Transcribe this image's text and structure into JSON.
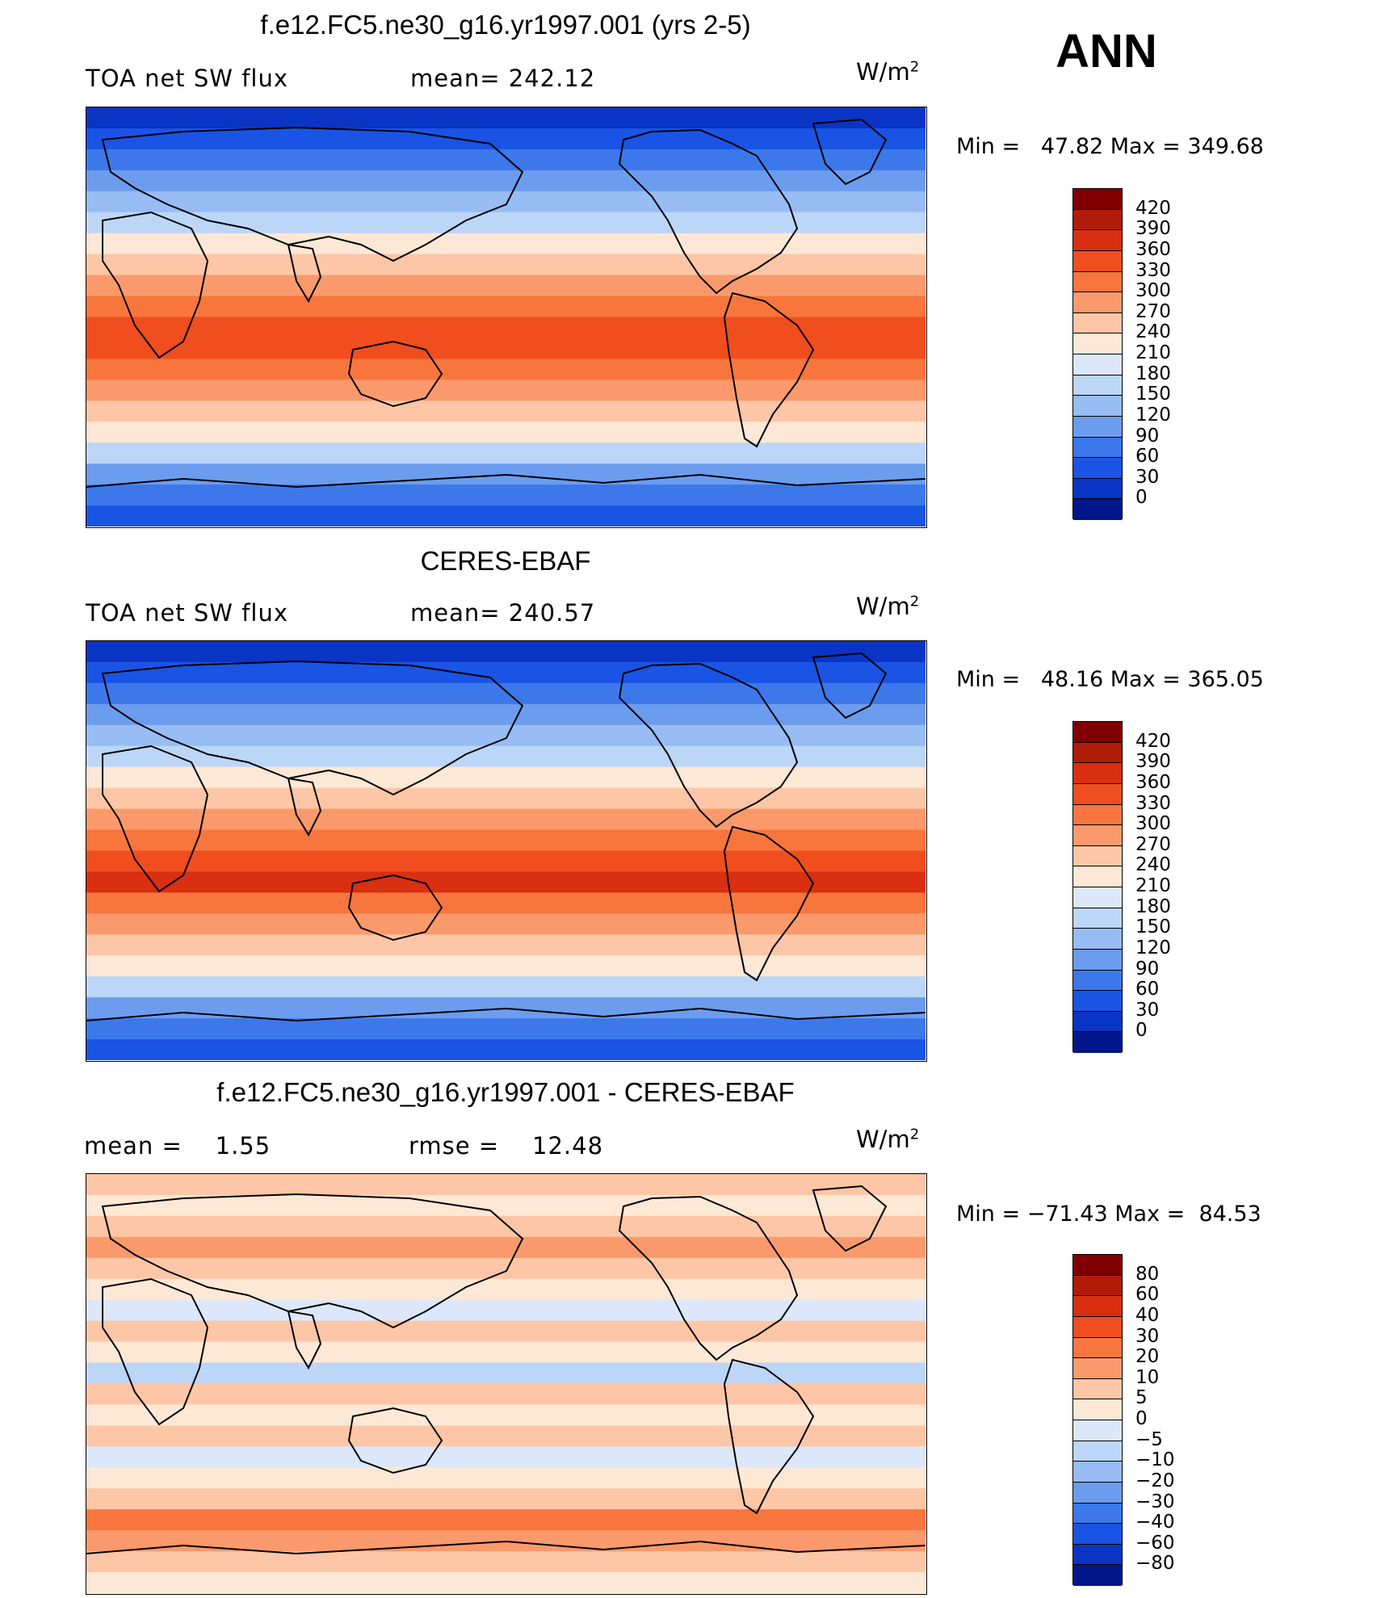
{
  "season": "ANN",
  "panels": [
    {
      "id": "model",
      "title": "f.e12.FC5.ne30_g16.yr1997.001 (yrs 2-5)",
      "left_label": "TOA net SW flux",
      "center_label": "mean= 242.12",
      "units": "W/m",
      "units_exp": "2",
      "min_label": "Min =",
      "min_value": "47.82",
      "max_label": "Max =",
      "max_value": "349.68",
      "colorbar": {
        "levels": [
          "420",
          "390",
          "360",
          "330",
          "300",
          "270",
          "240",
          "210",
          "180",
          "150",
          "120",
          "90",
          "60",
          "30",
          "0"
        ],
        "colors": [
          "#7f0000",
          "#b01c08",
          "#d83010",
          "#f04e1e",
          "#f8763e",
          "#fa9a6c",
          "#fdc6a6",
          "#fde8d6",
          "#dce8fa",
          "#bcd6f8",
          "#98bcf4",
          "#6c9cee",
          "#3c78ea",
          "#1a54e4",
          "#0a34c4",
          "#00168a"
        ]
      },
      "fill_bands": [
        "#0a34c4",
        "#1a54e4",
        "#3c78ea",
        "#6c9cee",
        "#98bcf4",
        "#bcd6f8",
        "#fde8d6",
        "#fdc6a6",
        "#fa9a6c",
        "#f8763e",
        "#f04e1e",
        "#f04e1e",
        "#f8763e",
        "#fa9a6c",
        "#fdc6a6",
        "#fde8d6",
        "#bcd6f8",
        "#6c9cee",
        "#3c78ea",
        "#1a54e4"
      ]
    },
    {
      "id": "obs",
      "title": "CERES-EBAF",
      "left_label": "TOA net SW flux",
      "center_label": "mean= 240.57",
      "units": "W/m",
      "units_exp": "2",
      "min_label": "Min =",
      "min_value": "48.16",
      "max_label": "Max =",
      "max_value": "365.05",
      "colorbar": {
        "levels": [
          "420",
          "390",
          "360",
          "330",
          "300",
          "270",
          "240",
          "210",
          "180",
          "150",
          "120",
          "90",
          "60",
          "30",
          "0"
        ],
        "colors": [
          "#7f0000",
          "#b01c08",
          "#d83010",
          "#f04e1e",
          "#f8763e",
          "#fa9a6c",
          "#fdc6a6",
          "#fde8d6",
          "#dce8fa",
          "#bcd6f8",
          "#98bcf4",
          "#6c9cee",
          "#3c78ea",
          "#1a54e4",
          "#0a34c4",
          "#00168a"
        ]
      },
      "fill_bands": [
        "#0a34c4",
        "#1a54e4",
        "#3c78ea",
        "#6c9cee",
        "#98bcf4",
        "#bcd6f8",
        "#fde8d6",
        "#fdc6a6",
        "#fa9a6c",
        "#f8763e",
        "#f04e1e",
        "#d83010",
        "#f8763e",
        "#fa9a6c",
        "#fdc6a6",
        "#fde8d6",
        "#bcd6f8",
        "#6c9cee",
        "#3c78ea",
        "#1a54e4"
      ]
    },
    {
      "id": "diff",
      "title": "f.e12.FC5.ne30_g16.yr1997.001 - CERES-EBAF",
      "left_label": "mean =    1.55",
      "center_label": "rmse =    12.48",
      "units": "W/m",
      "units_exp": "2",
      "min_label": "Min =",
      "min_value": "−71.43",
      "max_label": "Max =",
      "max_value": "84.53",
      "colorbar": {
        "levels": [
          "80",
          "60",
          "40",
          "30",
          "20",
          "10",
          "5",
          "0",
          "−5",
          "−10",
          "−20",
          "−30",
          "−40",
          "−60",
          "−80"
        ],
        "colors": [
          "#7f0000",
          "#b01c08",
          "#d83010",
          "#f04e1e",
          "#f8763e",
          "#fa9a6c",
          "#fdc6a6",
          "#fde8d6",
          "#dce8fa",
          "#bcd6f8",
          "#98bcf4",
          "#6c9cee",
          "#3c78ea",
          "#1a54e4",
          "#0a34c4",
          "#00168a"
        ]
      },
      "fill_bands": [
        "#fdc6a6",
        "#fde8d6",
        "#fdc6a6",
        "#fa9a6c",
        "#fdc6a6",
        "#fde8d6",
        "#dce8fa",
        "#fdc6a6",
        "#fde8d6",
        "#bcd6f8",
        "#fdc6a6",
        "#fde8d6",
        "#fdc6a6",
        "#dce8fa",
        "#fde8d6",
        "#fdc6a6",
        "#f8763e",
        "#fa9a6c",
        "#fdc6a6",
        "#fde8d6"
      ]
    }
  ]
}
